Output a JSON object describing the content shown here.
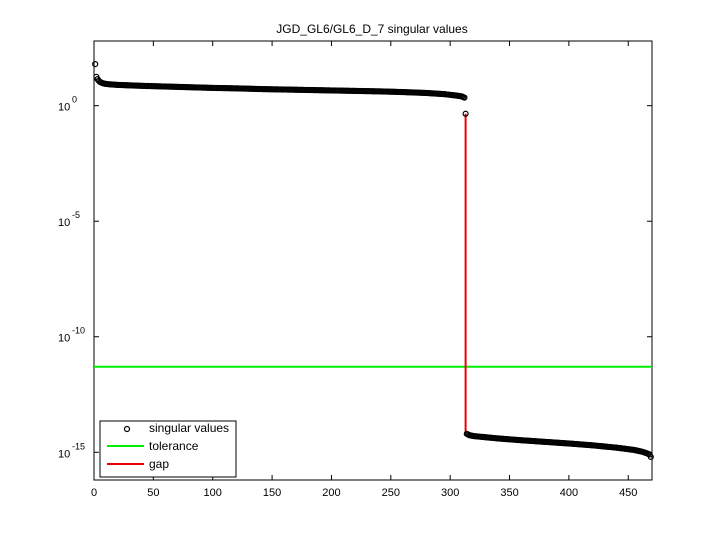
{
  "chart_data": {
    "type": "scatter",
    "title": "JGD_GL6/GL6_D_7 singular values",
    "xlabel": "",
    "ylabel": "",
    "xlim": [
      0,
      470
    ],
    "ylim": [
      -16.2,
      2.8
    ],
    "y_scale": "log10",
    "grid": false,
    "legend_position": "bottom-left",
    "x_ticks": [
      0,
      50,
      100,
      150,
      200,
      250,
      300,
      350,
      400,
      450
    ],
    "x_tick_labels": [
      "0",
      "50",
      "100",
      "150",
      "200",
      "250",
      "300",
      "350",
      "400",
      "450"
    ],
    "y_ticks": [
      {
        "exp": 0,
        "base": "10",
        "sup": "0"
      },
      {
        "exp": -5,
        "base": "10",
        "sup": "-5"
      },
      {
        "exp": -10,
        "base": "10",
        "sup": "-10"
      },
      {
        "exp": -15,
        "base": "10",
        "sup": "-15"
      }
    ],
    "series": [
      {
        "name": "singular values",
        "kind": "markers",
        "color": "#000000",
        "points_log10": [
          [
            1,
            1.8
          ],
          [
            2,
            1.25
          ],
          [
            3,
            1.15
          ],
          [
            4,
            1.08
          ],
          [
            5,
            1.03
          ],
          [
            7,
            0.98
          ],
          [
            9,
            0.95
          ],
          [
            12,
            0.93
          ],
          [
            20,
            0.9
          ],
          [
            40,
            0.86
          ],
          [
            60,
            0.83
          ],
          [
            80,
            0.8
          ],
          [
            100,
            0.77
          ],
          [
            120,
            0.75
          ],
          [
            140,
            0.72
          ],
          [
            160,
            0.7
          ],
          [
            180,
            0.68
          ],
          [
            200,
            0.66
          ],
          [
            220,
            0.64
          ],
          [
            240,
            0.62
          ],
          [
            260,
            0.59
          ],
          [
            280,
            0.55
          ],
          [
            295,
            0.5
          ],
          [
            305,
            0.44
          ],
          [
            310,
            0.4
          ],
          [
            311,
            0.37
          ],
          [
            312,
            0.35
          ],
          [
            313,
            -0.35
          ],
          [
            314,
            -14.2
          ],
          [
            316,
            -14.26
          ],
          [
            320,
            -14.3
          ],
          [
            340,
            -14.4
          ],
          [
            360,
            -14.48
          ],
          [
            380,
            -14.55
          ],
          [
            400,
            -14.62
          ],
          [
            420,
            -14.7
          ],
          [
            440,
            -14.8
          ],
          [
            455,
            -14.9
          ],
          [
            462,
            -14.98
          ],
          [
            466,
            -15.05
          ],
          [
            468,
            -15.1
          ],
          [
            469,
            -15.2
          ]
        ]
      },
      {
        "name": "tolerance",
        "kind": "hline",
        "color": "#00ee00",
        "y_log10": -11.3
      },
      {
        "name": "gap",
        "kind": "vline",
        "color": "#ee0000",
        "x": 313,
        "y_log10_range": [
          -14.2,
          -0.35
        ]
      }
    ]
  }
}
